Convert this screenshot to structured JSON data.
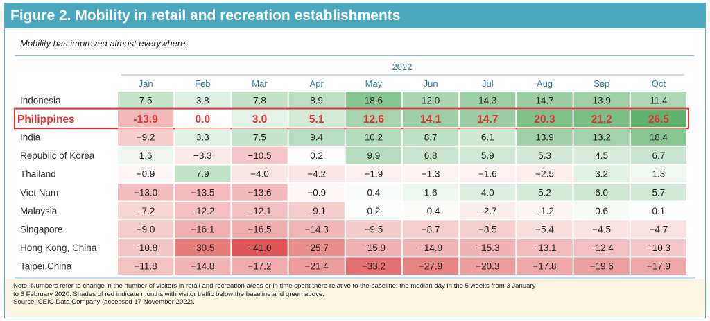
{
  "figure_title": "Figure 2. Mobility in retail and recreation establishments",
  "subtitle": "Mobility has improved almost everywhere.",
  "notes": [
    "Note: Numbers refer to change in the number of visitors in retail and recreation areas or in time spent there relative to the baseline: the median day in the 5 weeks from 3 January",
    "to 6 February 2020. Shades of red indicate months with visitor traffic below the baseline and green above.",
    "Source: CEIC Data Company (accessed 17 November 2022)."
  ],
  "colors": {
    "header": "#4aa7bd",
    "highlight": "#e03232",
    "positive": "#4fa85f",
    "negative": "#d9484a"
  },
  "chart_data": {
    "type": "heatmap",
    "year_label": "2022",
    "columns": [
      "Jan",
      "Feb",
      "Mar",
      "Apr",
      "May",
      "Jun",
      "Jul",
      "Aug",
      "Sep",
      "Oct"
    ],
    "highlight_row": "Philippines",
    "rows": [
      {
        "name": "Indonesia",
        "values": [
          7.5,
          3.8,
          7.8,
          8.9,
          18.6,
          12.0,
          14.3,
          14.7,
          13.9,
          11.4
        ],
        "labels": [
          "7.5",
          "3.8",
          "7.8",
          "8.9",
          "18.6",
          "12.0",
          "14.3",
          "14.7",
          "13.9",
          "11.4"
        ]
      },
      {
        "name": "Philippines",
        "values": [
          -13.9,
          0.0,
          3.0,
          5.1,
          12.6,
          14.1,
          14.7,
          20.3,
          21.2,
          26.5
        ],
        "labels": [
          "-13.9",
          "0.0",
          "3.0",
          "5.1",
          "12.6",
          "14.1",
          "14.7",
          "20.3",
          "21.2",
          "26.5"
        ]
      },
      {
        "name": "India",
        "values": [
          -9.2,
          3.3,
          7.5,
          9.4,
          10.2,
          8.7,
          6.1,
          13.9,
          13.2,
          18.4
        ],
        "labels": [
          "−9.2",
          "3.3",
          "7.5",
          "9.4",
          "10.2",
          "8.7",
          "6.1",
          "13.9",
          "13.2",
          "18.4"
        ]
      },
      {
        "name": "Republic of Korea",
        "values": [
          1.6,
          -3.3,
          -10.5,
          0.2,
          9.9,
          6.8,
          5.9,
          5.3,
          4.5,
          6.7
        ],
        "labels": [
          "1.6",
          "−3.3",
          "−10.5",
          "0.2",
          "9.9",
          "6.8",
          "5.9",
          "5.3",
          "4.5",
          "6.7"
        ]
      },
      {
        "name": "Thailand",
        "values": [
          -0.9,
          7.9,
          -4.0,
          -4.2,
          -1.9,
          -1.3,
          -1.6,
          -2.5,
          3.2,
          1.3
        ],
        "labels": [
          "−0.9",
          "7.9",
          "−4.0",
          "−4.2",
          "−1.9",
          "−1.3",
          "−1.6",
          "−2.5",
          "3.2",
          "1.3"
        ]
      },
      {
        "name": "Viet Nam",
        "values": [
          -13.0,
          -13.5,
          -13.6,
          -0.9,
          0.4,
          1.6,
          4.0,
          5.2,
          6.0,
          5.7
        ],
        "labels": [
          "−13.0",
          "−13.5",
          "−13.6",
          "−0.9",
          "0.4",
          "1.6",
          "4.0",
          "5.2",
          "6.0",
          "5.7"
        ]
      },
      {
        "name": "Malaysia",
        "values": [
          -7.2,
          -12.2,
          -12.1,
          -9.1,
          0.2,
          -0.4,
          -2.7,
          -1.2,
          0.6,
          0.1
        ],
        "labels": [
          "−7.2",
          "−12.2",
          "−12.1",
          "−9.1",
          "0.2",
          "−0.4",
          "−2.7",
          "−1.2",
          "0.6",
          "0.1"
        ]
      },
      {
        "name": "Singapore",
        "values": [
          -9.0,
          -16.1,
          -16.5,
          -14.3,
          -9.5,
          -8.7,
          -8.5,
          -5.4,
          -4.5,
          -4.7
        ],
        "labels": [
          "−9.0",
          "−16.1",
          "−16.5",
          "−14.3",
          "−9.5",
          "−8.7",
          "−8.5",
          "−5.4",
          "−4.5",
          "−4.7"
        ]
      },
      {
        "name": "Hong Kong, China",
        "values": [
          -10.8,
          -30.5,
          -41.0,
          -25.7,
          -15.9,
          -14.9,
          -15.3,
          -13.1,
          -12.4,
          -10.3
        ],
        "labels": [
          "−10.8",
          "−30.5",
          "−41.0",
          "−25.7",
          "−15.9",
          "−14.9",
          "−15.3",
          "−13.1",
          "−12.4",
          "−10.3"
        ]
      },
      {
        "name": "Taipei,China",
        "values": [
          -11.8,
          -14.8,
          -17.2,
          -21.4,
          -33.2,
          -27.9,
          -20.3,
          -17.8,
          -19.6,
          -17.9
        ],
        "labels": [
          "−11.8",
          "−14.8",
          "−17.2",
          "−21.4",
          "−33.2",
          "−27.9",
          "−20.3",
          "−17.8",
          "−19.6",
          "−17.9"
        ]
      }
    ]
  }
}
